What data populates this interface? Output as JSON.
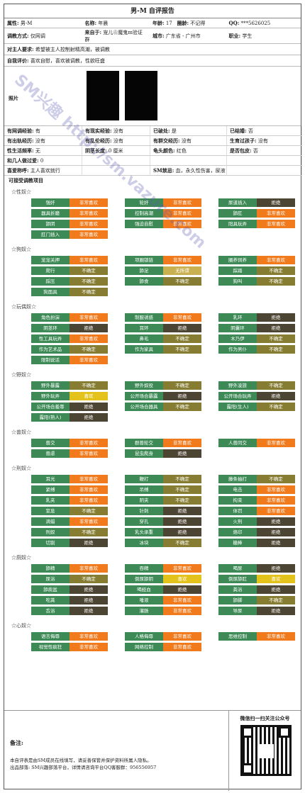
{
  "title": "男-M 自评报告",
  "info": {
    "attr_label": "属性:",
    "attr": "男-M",
    "name_label": "名称:",
    "name": "年晨",
    "age_label": "年龄:",
    "age": "17",
    "circle_label": "圈龄:",
    "circle": "不记得",
    "qq_label": "QQ:",
    "qq": "***5626025",
    "train_label": "调教方式:",
    "train": "仅网调",
    "from_label": "来自于:",
    "from": "宠儿❀魔鬼m验证群",
    "city_label": "城市:",
    "city": "广东省 - 广州市",
    "job_label": "职业:",
    "job": "学生",
    "req_label": "对主人要求:",
    "req": "希望被主人控制射精高潮，被调教",
    "self_label": "自我评价:",
    "self": "喜欢自慰，喜欢被调教，性欲旺盛",
    "photo_label": "照片",
    "grid": [
      [
        "有网调经验:",
        "有",
        "有现实经验:",
        "没有",
        "已破处:",
        "是",
        "已结婚:",
        "否"
      ],
      [
        "有出轨经历:",
        "没有",
        "有乱伦经历:",
        "没有",
        "有群交经历:",
        "没有",
        "生育过孩子:",
        "没有"
      ],
      [
        "性生活频率:",
        "无",
        "阴茎长度:",
        "0 厘米",
        "龟头颜色:",
        "红色",
        "是否包皮:",
        "否"
      ],
      [
        "和几人做过爱:",
        "0",
        "",
        "",
        "",
        "",
        "",
        ""
      ],
      [
        "喜爱称呼:",
        "主人喜欢就行",
        "",
        "",
        "SM禁忌:",
        "血，永久性伤害，尿液",
        "",
        ""
      ]
    ],
    "items_title": "可接受调教项目"
  },
  "categories": [
    {
      "title": "☆性奴☆",
      "items": [
        [
          "强奸",
          "非常喜欢",
          "love"
        ],
        [
          "轮奸",
          "非常喜欢",
          "love"
        ],
        [
          "尿道插入",
          "拒绝",
          "no"
        ],
        [
          "器具折磨",
          "非常喜欢",
          "love"
        ],
        [
          "控制高潮",
          "非常喜欢",
          "love"
        ],
        [
          "舔肛",
          "非常喜欢",
          "love"
        ],
        [
          "舔阴",
          "非常喜欢",
          "love"
        ],
        [
          "强迫自慰",
          "非常喜欢",
          "love"
        ],
        [
          "阳具玩弄",
          "非常喜欢",
          "love"
        ],
        [
          "肛门插入",
          "非常喜欢",
          "love"
        ]
      ]
    },
    {
      "title": "☆狗奴☆",
      "items": [
        [
          "宠宠关押",
          "非常喜欢",
          "love"
        ],
        [
          "项圈锁链",
          "非常喜欢",
          "love"
        ],
        [
          "圈养饲养",
          "非常喜欢",
          "love"
        ],
        [
          "爬行",
          "不确定",
          "unsure"
        ],
        [
          "舔足",
          "无所谓",
          "mild"
        ],
        [
          "踩踏",
          "不确定",
          "unsure"
        ],
        [
          "踩压",
          "不确定",
          "unsure"
        ],
        [
          "舔食",
          "不确定",
          "unsure"
        ],
        [
          "狗叫",
          "不确定",
          "unsure"
        ],
        [
          "狗面具",
          "不确定",
          "unsure"
        ]
      ]
    },
    {
      "title": "☆玩偶奴☆",
      "items": [
        [
          "角色扮演",
          "非常喜欢",
          "love"
        ],
        [
          "制服诱惑",
          "非常喜欢",
          "love"
        ],
        [
          "乳环",
          "拒绝",
          "no"
        ],
        [
          "阴茎环",
          "拒绝",
          "no"
        ],
        [
          "耳环",
          "拒绝",
          "no"
        ],
        [
          "阴囊环",
          "拒绝",
          "no"
        ],
        [
          "性工具玩弄",
          "非常喜欢",
          "love"
        ],
        [
          "鼻毛",
          "不确定",
          "unsure"
        ],
        [
          "木乃伊",
          "不确定",
          "unsure"
        ],
        [
          "作为艺术品",
          "不确定",
          "unsure"
        ],
        [
          "作为家具",
          "不确定",
          "unsure"
        ],
        [
          "作为男仆",
          "不确定",
          "unsure"
        ],
        [
          "限制说话",
          "非常喜欢",
          "love"
        ]
      ]
    },
    {
      "title": "☆野奴☆",
      "items": [
        [
          "野外暴露",
          "不确定",
          "unsure"
        ],
        [
          "野外奴役",
          "不确定",
          "unsure"
        ],
        [
          "野外凌旅",
          "不确定",
          "unsure"
        ],
        [
          "野外玩弄",
          "喜欢",
          "like"
        ],
        [
          "公开场合暴露",
          "拒绝",
          "no"
        ],
        [
          "公开场合玩弄",
          "拒绝",
          "no"
        ],
        [
          "公开场合羞辱",
          "拒绝",
          "no"
        ],
        [
          "公开场合器具",
          "不确定",
          "unsure"
        ],
        [
          "露阳(生人)",
          "不确定",
          "unsure"
        ],
        [
          "露阳(熟人)",
          "拒绝",
          "no"
        ]
      ]
    },
    {
      "title": "☆兽奴☆",
      "items": [
        [
          "兽交",
          "非常喜欢",
          "love"
        ],
        [
          "群兽轮交",
          "非常喜欢",
          "love"
        ],
        [
          "人兽同交",
          "非常喜欢",
          "love"
        ],
        [
          "兽虐",
          "非常喜欢",
          "love"
        ],
        [
          "昆虫爬身",
          "拒绝",
          "no"
        ]
      ]
    },
    {
      "title": "☆刑奴☆",
      "items": [
        [
          "耳光",
          "非常喜欢",
          "love"
        ],
        [
          "鞭打",
          "不确定",
          "unsure"
        ],
        [
          "藤条抽打",
          "不确定",
          "unsure"
        ],
        [
          "紧缚",
          "非常喜欢",
          "love"
        ],
        [
          "吊缚",
          "不确定",
          "unsure"
        ],
        [
          "电击",
          "非常喜欢",
          "love"
        ],
        [
          "乳夹",
          "非常喜欢",
          "love"
        ],
        [
          "阴夹",
          "不确定",
          "unsure"
        ],
        [
          "拘束",
          "非常喜欢",
          "love"
        ],
        [
          "窒息",
          "不确定",
          "unsure"
        ],
        [
          "针刺",
          "拒绝",
          "no"
        ],
        [
          "体罚",
          "非常喜欢",
          "love"
        ],
        [
          "滴蜡",
          "非常喜欢",
          "love"
        ],
        [
          "穿孔",
          "拒绝",
          "no"
        ],
        [
          "火刑",
          "拒绝",
          "no"
        ],
        [
          "刑奴",
          "不确定",
          "unsure"
        ],
        [
          "乳头承重",
          "拒绝",
          "no"
        ],
        [
          "烙印",
          "拒绝",
          "no"
        ],
        [
          "切割",
          "拒绝",
          "no"
        ],
        [
          "冰块",
          "不确定",
          "unsure"
        ],
        [
          "糖棒",
          "拒绝",
          "no"
        ]
      ]
    },
    {
      "title": "☆厕奴☆",
      "items": [
        [
          "舔精",
          "非常喜欢",
          "love"
        ],
        [
          "吞精",
          "非常喜欢",
          "love"
        ],
        [
          "喝尿",
          "拒绝",
          "no"
        ],
        [
          "尿浴",
          "不确定",
          "unsure"
        ],
        [
          "倒尿舔阴",
          "喜欢",
          "like"
        ],
        [
          "倒尿舔肛",
          "喜欢",
          "like"
        ],
        [
          "舔痰盆",
          "拒绝",
          "no"
        ],
        [
          "喝经血",
          "拒绝",
          "no"
        ],
        [
          "粪浴",
          "拒绝",
          "no"
        ],
        [
          "吃粪",
          "拒绝",
          "no"
        ],
        [
          "唾液",
          "非常喜欢",
          "love"
        ],
        [
          "舔脚",
          "不确定",
          "unsure"
        ],
        [
          "舌浴",
          "拒绝",
          "no"
        ],
        [
          "灌肠",
          "非常喜欢",
          "love"
        ],
        [
          "导尿",
          "拒绝",
          "no"
        ]
      ]
    },
    {
      "title": "☆心奴☆",
      "items": [
        [
          "语言侮辱",
          "非常喜欢",
          "love"
        ],
        [
          "人格侮辱",
          "非常喜欢",
          "love"
        ],
        [
          "思维控制",
          "非常喜欢",
          "love"
        ],
        [
          "视觉性疯狂",
          "非常喜欢",
          "love"
        ],
        [
          "网络控制",
          "非常喜欢",
          "love"
        ]
      ]
    }
  ],
  "footer": {
    "notes_label": "备注:",
    "line1": "本自评表是由SM成员在线填写，请妥善保管并保护资料所属人隐私。",
    "line2": "出品部落: SM兴趣部落平台，详情请咨询平台QQ客服群：956556957",
    "qr_title": "微信扫一扫关注公众号"
  },
  "watermark": "SM兴趣 http://sm.vazure.com"
}
